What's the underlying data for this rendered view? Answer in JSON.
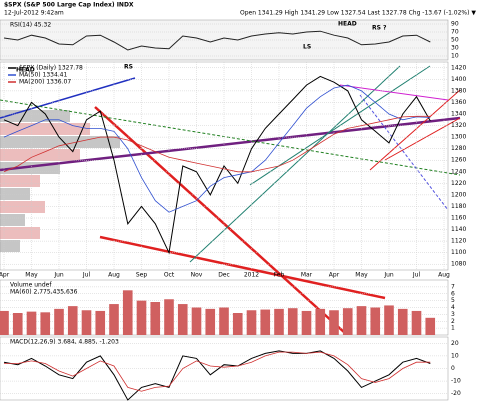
{
  "chart_data": [
    {
      "type": "line",
      "label": "RSI(14) 45.32",
      "series": [
        {
          "name": "RSI(14)",
          "color": "#222222",
          "values": [
            55,
            50,
            62,
            55,
            40,
            38,
            60,
            62,
            45,
            25,
            35,
            30,
            28,
            60,
            55,
            45,
            55,
            50,
            60,
            65,
            68,
            65,
            70,
            72,
            62,
            55,
            38,
            40,
            45,
            60,
            62,
            45,
            null
          ]
        }
      ],
      "ylim": [
        0,
        100
      ],
      "yticks": [
        10,
        30,
        50,
        70,
        90
      ],
      "grid": true
    },
    {
      "type": "line",
      "title": "$SPX (S&P 500 Large Cap Index) INDX",
      "subtitle": "12-Jul-2012 9:42am",
      "quote": "Open 1341.29 High 1341.29 Low 1327.54 Last 1327.78 Chg -13.67 (-1.02%) ▼",
      "annotations": [
        "HEAD",
        "RS",
        "LS",
        "HEAD",
        "RS ?"
      ],
      "categories": [
        "Apr",
        null,
        "May",
        null,
        "Jun",
        null,
        "Jul",
        null,
        "Aug",
        null,
        "Sep",
        null,
        "Oct",
        null,
        "Nov",
        null,
        "Dec",
        null,
        "2012",
        null,
        "Feb",
        null,
        "Mar",
        null,
        "Apr",
        null,
        "May",
        null,
        "Jun",
        null,
        "Jul",
        null,
        "Aug"
      ],
      "series": [
        {
          "name": "$SPX (Daily) 1327.78",
          "color": "#000000",
          "values": [
            1330,
            1320,
            1360,
            1340,
            1300,
            1275,
            1330,
            1345,
            1260,
            1150,
            1180,
            1150,
            1100,
            1250,
            1240,
            1200,
            1250,
            1220,
            1280,
            1315,
            1340,
            1365,
            1390,
            1405,
            1395,
            1380,
            1330,
            1310,
            1290,
            1340,
            1370,
            1328,
            null
          ]
        },
        {
          "name": "MA(50) 1334.41",
          "color": "#3050d0",
          "values": [
            1300,
            1310,
            1320,
            1330,
            1330,
            1320,
            1315,
            1315,
            1310,
            1280,
            1230,
            1190,
            1170,
            1180,
            1190,
            1215,
            1230,
            1235,
            1240,
            1260,
            1290,
            1320,
            1350,
            1370,
            1385,
            1390,
            1380,
            1360,
            1340,
            1330,
            1335,
            1334,
            null
          ]
        },
        {
          "name": "MA(200) 1336.07",
          "color": "#d03030",
          "values": [
            1240,
            1250,
            1265,
            1275,
            1285,
            1290,
            1295,
            1300,
            1300,
            1295,
            1285,
            1275,
            1265,
            1260,
            1255,
            1250,
            1245,
            1240,
            1240,
            1245,
            1250,
            1260,
            1275,
            1290,
            1305,
            1315,
            1320,
            1325,
            1330,
            1335,
            1336,
            1336,
            null
          ]
        }
      ],
      "ylim": [
        1070,
        1430
      ],
      "yticks": [
        1080,
        1100,
        1120,
        1140,
        1160,
        1180,
        1200,
        1220,
        1240,
        1260,
        1280,
        1300,
        1320,
        1340,
        1360,
        1380,
        1400,
        1420
      ],
      "grid": true
    },
    {
      "type": "bar",
      "label": "Volume undef",
      "sublabel": "MA(60) 2,775,435,636",
      "series": [
        {
          "name": "Volume",
          "color": "#d06060",
          "values": [
            3.5,
            3.2,
            3.4,
            3.3,
            3.8,
            4.2,
            3.6,
            3.5,
            4.5,
            6.5,
            5.0,
            4.8,
            5.2,
            4.5,
            4.0,
            3.8,
            4.0,
            3.2,
            3.6,
            3.7,
            3.8,
            3.9,
            3.5,
            3.8,
            3.6,
            3.9,
            4.2,
            4.0,
            4.3,
            3.8,
            3.5,
            2.5,
            null
          ]
        }
      ],
      "ylim": [
        0,
        8
      ],
      "yticks": [
        1,
        2,
        3,
        4,
        5,
        6,
        7
      ],
      "grid": true
    },
    {
      "type": "line",
      "label": "MACD(12,26,9) 3.684, 4.885, -1.203",
      "series": [
        {
          "name": "MACD",
          "color": "#000000",
          "values": [
            5,
            3,
            8,
            2,
            -5,
            -8,
            5,
            10,
            -5,
            -25,
            -15,
            -12,
            -15,
            10,
            8,
            -5,
            3,
            2,
            8,
            12,
            14,
            12,
            12,
            14,
            8,
            -2,
            -15,
            -10,
            -5,
            5,
            8,
            4,
            null
          ]
        },
        {
          "name": "Signal",
          "color": "#d03030",
          "values": [
            4,
            4,
            6,
            4,
            -2,
            -6,
            0,
            6,
            2,
            -15,
            -18,
            -15,
            -14,
            0,
            6,
            2,
            1,
            2,
            5,
            10,
            13,
            13,
            12,
            13,
            10,
            3,
            -8,
            -11,
            -8,
            0,
            5,
            5,
            null
          ]
        }
      ],
      "ylim": [
        -25,
        25
      ],
      "yticks": [
        -20,
        -10,
        0,
        10,
        20
      ],
      "grid": true
    }
  ]
}
